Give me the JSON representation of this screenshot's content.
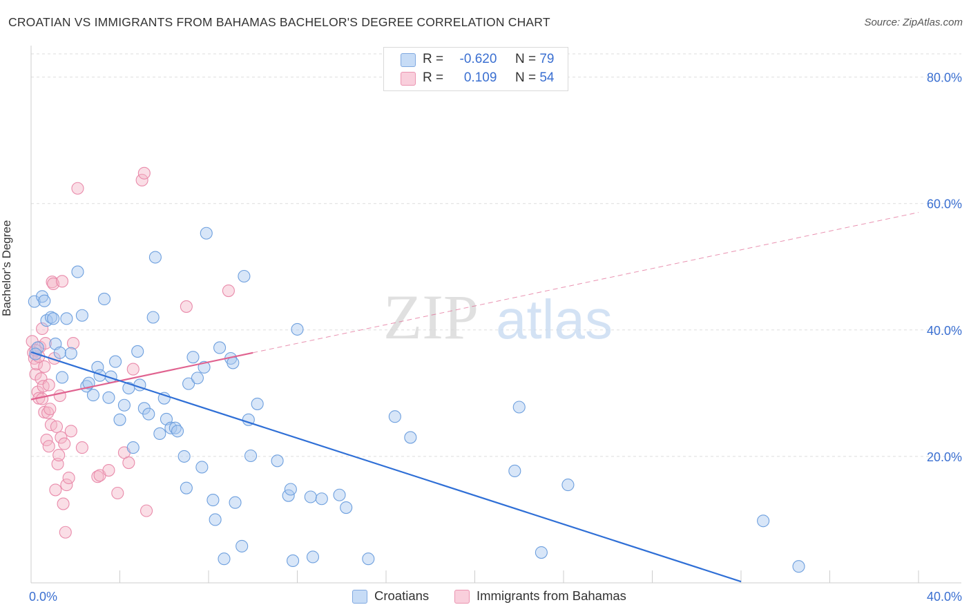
{
  "title": "CROATIAN VS IMMIGRANTS FROM BAHAMAS BACHELOR'S DEGREE CORRELATION CHART",
  "source": "Source: ZipAtlas.com",
  "watermark": {
    "zip": "ZIP",
    "atlas": "atlas"
  },
  "legend": {
    "r_label": "R =",
    "n_label": "N =",
    "rows": [
      {
        "r": "-0.620",
        "n": "79",
        "color": "#a8c8f0"
      },
      {
        "r": "0.109",
        "n": "54",
        "color": "#f4b6c8"
      }
    ]
  },
  "bottom_legend": [
    "Croatians",
    "Immigrants from Bahamas"
  ],
  "chart_data": {
    "type": "scatter",
    "title": "CROATIAN VS IMMIGRANTS FROM BAHAMAS BACHELOR'S DEGREE CORRELATION CHART",
    "xlabel": "",
    "ylabel": "Bachelor's Degree",
    "xlim": [
      0,
      40
    ],
    "ylim": [
      0,
      84
    ],
    "x_tick_labels": [
      "0.0%",
      "40.0%"
    ],
    "y_ticks": [
      20,
      40,
      60,
      80
    ],
    "y_tick_labels": [
      "20.0%",
      "40.0%",
      "60.0%",
      "80.0%"
    ],
    "grid": true,
    "series": [
      {
        "name": "Croatians",
        "color": "#a8c8f0",
        "stroke": "#6d9fde",
        "line_color": "#2f6fd6",
        "r": -0.62,
        "n": 79,
        "trend": {
          "x": [
            0,
            32
          ],
          "y": [
            36.5,
            0.2
          ]
        },
        "points": [
          [
            0.15,
            44.5
          ],
          [
            0.3,
            37.2
          ],
          [
            0.5,
            45.3
          ],
          [
            0.6,
            44.6
          ],
          [
            0.7,
            41.5
          ],
          [
            0.9,
            42.0
          ],
          [
            1.0,
            41.8
          ],
          [
            1.1,
            37.8
          ],
          [
            1.3,
            36.4
          ],
          [
            1.4,
            32.5
          ],
          [
            1.6,
            41.8
          ],
          [
            1.8,
            36.3
          ],
          [
            2.1,
            49.2
          ],
          [
            2.3,
            42.3
          ],
          [
            2.5,
            31.1
          ],
          [
            2.6,
            31.6
          ],
          [
            2.8,
            29.7
          ],
          [
            3.0,
            34.1
          ],
          [
            3.1,
            32.8
          ],
          [
            3.3,
            44.9
          ],
          [
            3.5,
            29.3
          ],
          [
            3.6,
            32.6
          ],
          [
            3.8,
            35.0
          ],
          [
            4.0,
            25.8
          ],
          [
            4.2,
            28.1
          ],
          [
            4.4,
            30.8
          ],
          [
            4.6,
            21.4
          ],
          [
            4.8,
            36.6
          ],
          [
            4.9,
            31.3
          ],
          [
            5.1,
            27.6
          ],
          [
            5.3,
            26.7
          ],
          [
            5.5,
            42.0
          ],
          [
            5.6,
            51.5
          ],
          [
            5.8,
            23.6
          ],
          [
            6.0,
            29.2
          ],
          [
            6.1,
            25.9
          ],
          [
            6.3,
            24.5
          ],
          [
            6.5,
            24.5
          ],
          [
            6.6,
            24.0
          ],
          [
            6.9,
            20.0
          ],
          [
            7.0,
            15.0
          ],
          [
            7.1,
            31.5
          ],
          [
            7.3,
            35.7
          ],
          [
            7.5,
            32.4
          ],
          [
            7.7,
            18.3
          ],
          [
            7.8,
            34.1
          ],
          [
            7.9,
            55.3
          ],
          [
            8.2,
            13.1
          ],
          [
            8.3,
            10.0
          ],
          [
            8.5,
            37.2
          ],
          [
            8.7,
            3.8
          ],
          [
            9.0,
            35.5
          ],
          [
            9.1,
            34.8
          ],
          [
            9.2,
            12.7
          ],
          [
            9.5,
            5.8
          ],
          [
            9.6,
            48.5
          ],
          [
            9.8,
            25.8
          ],
          [
            9.9,
            20.1
          ],
          [
            10.2,
            28.3
          ],
          [
            11.1,
            19.3
          ],
          [
            11.6,
            13.8
          ],
          [
            11.7,
            14.8
          ],
          [
            11.8,
            3.5
          ],
          [
            12.0,
            40.1
          ],
          [
            12.6,
            13.6
          ],
          [
            12.7,
            4.1
          ],
          [
            13.1,
            13.3
          ],
          [
            13.9,
            13.9
          ],
          [
            14.2,
            11.9
          ],
          [
            15.2,
            3.8
          ],
          [
            16.4,
            26.3
          ],
          [
            17.1,
            23.0
          ],
          [
            21.8,
            17.7
          ],
          [
            22.0,
            27.8
          ],
          [
            23.0,
            4.8
          ],
          [
            24.2,
            15.5
          ],
          [
            33.0,
            9.8
          ],
          [
            34.6,
            2.6
          ],
          [
            0.2,
            36.2
          ]
        ]
      },
      {
        "name": "Immigrants from Bahamas",
        "color": "#f4b6c8",
        "stroke": "#e98aaa",
        "line_color": "#e0628f",
        "r": 0.109,
        "n": 54,
        "trend": {
          "x": [
            0,
            10
          ],
          "y": [
            29.0,
            36.4
          ]
        },
        "trend_dashed": {
          "x": [
            10,
            40
          ],
          "y": [
            36.4,
            58.6
          ]
        },
        "points": [
          [
            0.05,
            38.2
          ],
          [
            0.1,
            36.4
          ],
          [
            0.15,
            35.5
          ],
          [
            0.2,
            33.0
          ],
          [
            0.25,
            34.6
          ],
          [
            0.3,
            30.2
          ],
          [
            0.35,
            29.2
          ],
          [
            0.4,
            37.3
          ],
          [
            0.45,
            32.3
          ],
          [
            0.5,
            40.2
          ],
          [
            0.55,
            31.1
          ],
          [
            0.6,
            27.0
          ],
          [
            0.65,
            37.9
          ],
          [
            0.7,
            22.6
          ],
          [
            0.75,
            26.9
          ],
          [
            0.8,
            21.6
          ],
          [
            0.85,
            27.5
          ],
          [
            0.9,
            25.0
          ],
          [
            0.95,
            47.6
          ],
          [
            1.0,
            47.3
          ],
          [
            1.05,
            35.5
          ],
          [
            1.1,
            14.7
          ],
          [
            1.15,
            24.7
          ],
          [
            1.2,
            18.8
          ],
          [
            1.25,
            20.2
          ],
          [
            1.3,
            29.6
          ],
          [
            1.35,
            23.0
          ],
          [
            1.4,
            47.7
          ],
          [
            1.45,
            12.5
          ],
          [
            1.5,
            22.0
          ],
          [
            1.55,
            8.0
          ],
          [
            1.6,
            15.5
          ],
          [
            1.7,
            16.6
          ],
          [
            1.8,
            24.0
          ],
          [
            1.9,
            37.9
          ],
          [
            2.1,
            62.4
          ],
          [
            2.3,
            21.4
          ],
          [
            3.0,
            16.8
          ],
          [
            3.1,
            17.0
          ],
          [
            3.5,
            17.8
          ],
          [
            3.9,
            14.2
          ],
          [
            4.2,
            20.6
          ],
          [
            4.4,
            19.0
          ],
          [
            4.6,
            33.8
          ],
          [
            5.0,
            63.7
          ],
          [
            5.1,
            64.8
          ],
          [
            5.2,
            11.4
          ],
          [
            7.0,
            43.7
          ],
          [
            8.9,
            46.2
          ],
          [
            0.5,
            29.1
          ],
          [
            0.35,
            35.8
          ],
          [
            0.6,
            34.2
          ],
          [
            0.8,
            31.3
          ],
          [
            0.2,
            36.8
          ]
        ]
      }
    ]
  }
}
